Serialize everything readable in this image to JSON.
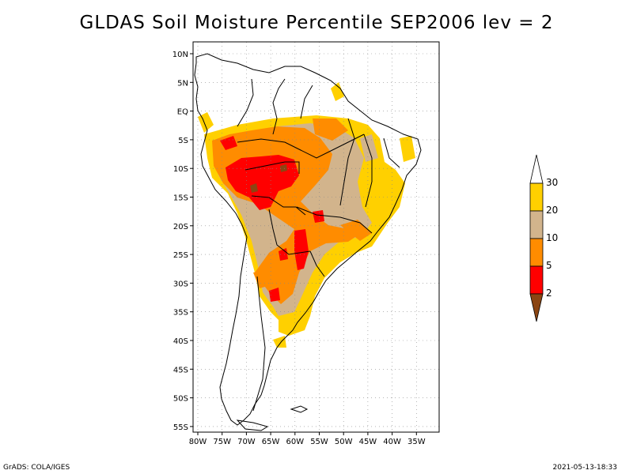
{
  "title": "GLDAS Soil Moisture Percentile SEP2006 lev = 2",
  "map": {
    "lon_range": [
      -80,
      -30
    ],
    "lat_range": [
      -55,
      10
    ],
    "lon_ticks": [
      "80W",
      "75W",
      "70W",
      "65W",
      "60W",
      "55W",
      "50W",
      "45W",
      "40W",
      "35W"
    ],
    "lat_ticks": [
      "10N",
      "5N",
      "EQ",
      "5S",
      "10S",
      "15S",
      "20S",
      "25S",
      "30S",
      "35S",
      "40S",
      "45S",
      "50S",
      "55S"
    ],
    "grid": "dotted"
  },
  "colorbar": {
    "labels": [
      "30",
      "20",
      "10",
      "5",
      "2"
    ],
    "colors": {
      "above_30": "#ffffff",
      "20_30": "#ffd000",
      "10_20": "#d2b48c",
      "5_10": "#ff8c00",
      "2_5": "#ff0000",
      "below_2": "#8b4513"
    }
  },
  "footer": {
    "left": "GrADS: COLA/IGES",
    "right": "2021-05-13-18:33"
  }
}
